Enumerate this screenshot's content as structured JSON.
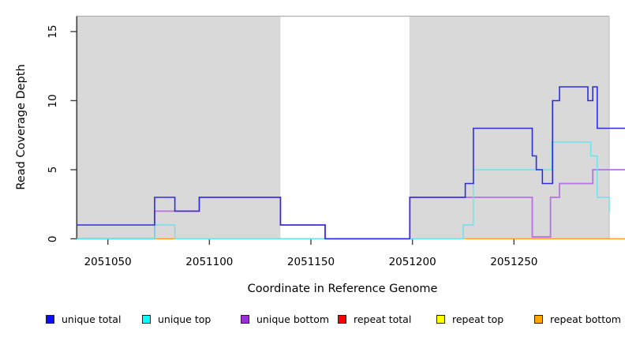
{
  "chart_data": {
    "type": "step-line",
    "title": "",
    "xlabel": "Coordinate in Reference Genome",
    "ylabel": "Read Coverage Depth",
    "xlim": [
      2051034.7,
      2051296.9
    ],
    "ylim": [
      0,
      16.15
    ],
    "x_ticks": [
      2051050,
      2051100,
      2051150,
      2051200,
      2051250
    ],
    "x_tick_labels": [
      "2051050",
      "2051100",
      "2051150",
      "2051200",
      "2051250"
    ],
    "y_ticks": [
      0,
      5,
      10,
      15
    ],
    "y_tick_labels": [
      "0",
      "5",
      "10",
      "15"
    ],
    "grid": "off",
    "legend_position": "bottom",
    "background_color": "#ffffff",
    "shade_color": "#d9d9d9",
    "shaded_regions": [
      {
        "from": 2051034.7,
        "to": 2051135
      },
      {
        "from": 2051198.5,
        "to": 2051296.9
      }
    ],
    "series": [
      {
        "name": "unique total",
        "legend_color": "#0b0bff",
        "line_color": "#2d2de0",
        "line_width": 1.6,
        "extend_to_edge": true,
        "steps": [
          [
            2051034.7,
            1
          ],
          [
            2051073,
            3
          ],
          [
            2051083,
            2
          ],
          [
            2051095,
            3
          ],
          [
            2051135,
            1
          ],
          [
            2051157,
            0
          ],
          [
            2051198.7,
            3
          ],
          [
            2051226,
            4
          ],
          [
            2051230,
            8
          ],
          [
            2051259,
            6
          ],
          [
            2051261,
            5
          ],
          [
            2051264,
            4
          ],
          [
            2051269,
            10
          ],
          [
            2051272.4,
            11
          ],
          [
            2051286.4,
            10
          ],
          [
            2051288.8,
            11
          ],
          [
            2051291,
            8
          ]
        ]
      },
      {
        "name": "unique top",
        "legend_color": "#00ffff",
        "line_color": "#6ce3ea",
        "line_width": 1.4,
        "extend_to_edge": false,
        "end_at": 2051297.3,
        "steps": [
          [
            2051034.7,
            0
          ],
          [
            2051073,
            1
          ],
          [
            2051083,
            0
          ],
          [
            2051225,
            1
          ],
          [
            2051230,
            5
          ],
          [
            2051268.6,
            7
          ],
          [
            2051287.8,
            6
          ],
          [
            2051291,
            3
          ],
          [
            2051296.9,
            2
          ]
        ]
      },
      {
        "name": "unique bottom",
        "legend_color": "#9b30d9",
        "line_color": "#b671e3",
        "line_width": 1.8,
        "extend_to_edge": true,
        "steps": [
          [
            2051034.7,
            0
          ],
          [
            2051073,
            2
          ],
          [
            2051095,
            3
          ],
          [
            2051135,
            1
          ],
          [
            2051157,
            0
          ],
          [
            2051198.7,
            3
          ],
          [
            2051259,
            0.13
          ],
          [
            2051268,
            3
          ],
          [
            2051272.4,
            4
          ],
          [
            2051288.8,
            5
          ]
        ]
      },
      {
        "name": "repeat total",
        "legend_color": "#ff0000",
        "line_color": "#e8547e",
        "line_width": 1.5,
        "extend_to_edge": false,
        "end_at": 2051073,
        "steps": [
          [
            2051034.7,
            0
          ]
        ]
      },
      {
        "name": "repeat top",
        "legend_color": "#ffff00",
        "line_color": "#ffff00",
        "line_width": 1.5,
        "extend_to_edge": false,
        "steps": [],
        "note": "coverage 0; overlap with unique top renders as green baseline blend"
      },
      {
        "name": "repeat bottom",
        "legend_color": "#ffa500",
        "line_color": "#ffa128",
        "line_width": 1.5,
        "extend_to_edge": true,
        "steps": [
          [
            2051073,
            0
          ]
        ]
      }
    ],
    "baseline_segments": [
      {
        "from": 2051034.7,
        "to": 2051073,
        "color": "#e8547e",
        "depth": 0
      },
      {
        "from": 2051073,
        "to": 2051083,
        "color": "#ffa128",
        "depth": 0
      },
      {
        "from": 2051083,
        "to": 2051226,
        "color": "#8ad98b",
        "depth": 0
      },
      {
        "from": 2051226,
        "to": 2051308,
        "color": "#ffa128",
        "depth": 0
      }
    ],
    "axis_colors": {
      "axis": "#3f3f3f",
      "top_border": "#b0b0b0",
      "right_border": "#c4c4c4",
      "tick": "#3f3f3f"
    }
  }
}
